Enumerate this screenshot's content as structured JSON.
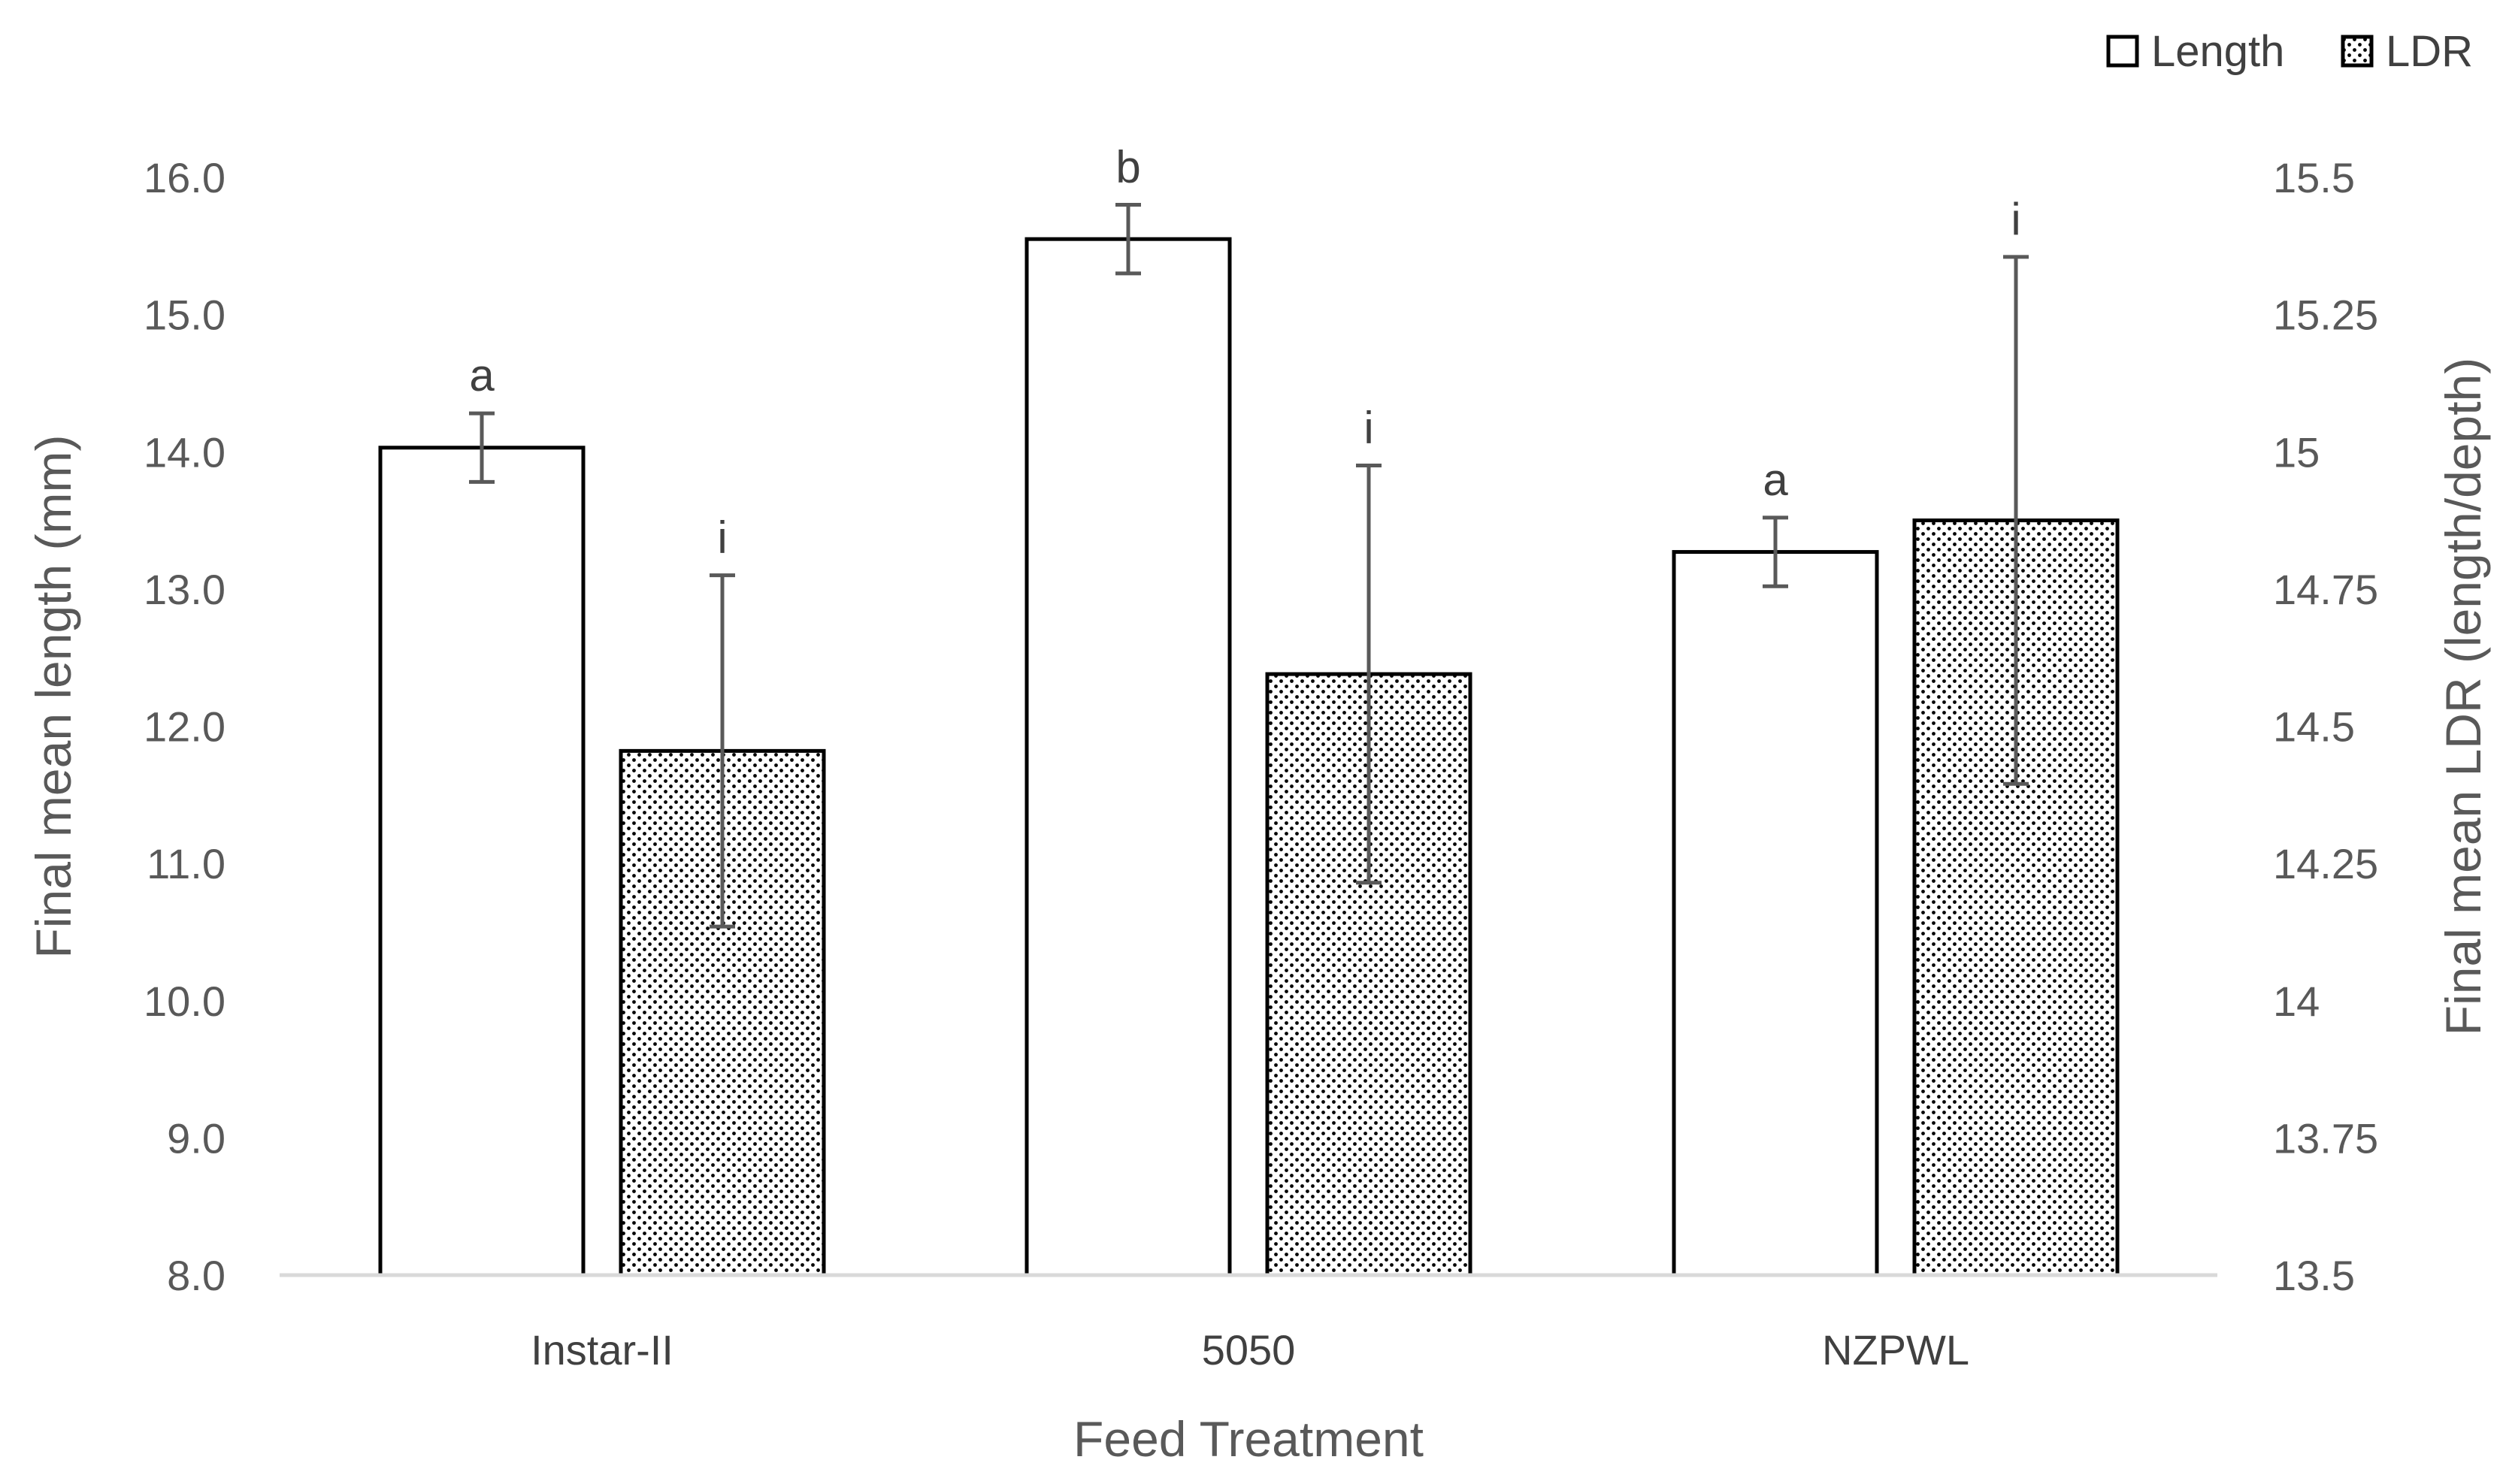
{
  "chart_data": {
    "type": "bar",
    "title": "",
    "xlabel": "Feed Treatment",
    "ylabel": "Final mean length (mm)",
    "y2label": "Final mean  LDR (length/depth)",
    "categories": [
      "Instar-II",
      "5050",
      "NZPWL"
    ],
    "ylim": [
      8.0,
      16.0
    ],
    "y2lim": [
      13.5,
      15.5
    ],
    "yticks": [
      "8.0",
      "9.0",
      "10.0",
      "11.0",
      "12.0",
      "13.0",
      "14.0",
      "15.0",
      "16.0"
    ],
    "y2ticks": [
      "13.5",
      "13.75",
      "14",
      "14.25",
      "14.5",
      "14.75",
      "15",
      "15.25",
      "15.5"
    ],
    "series": [
      {
        "name": "Length",
        "axis": "left",
        "pattern": "white",
        "values": [
          14.03,
          15.55,
          13.27
        ],
        "error": [
          0.25,
          0.25,
          0.25
        ],
        "labels": [
          "a",
          "b",
          "a"
        ]
      },
      {
        "name": "LDR",
        "axis": "right",
        "pattern": "dotted",
        "values": [
          14.455,
          14.595,
          14.875
        ],
        "error": [
          0.32,
          0.38,
          0.48
        ],
        "labels": [
          "i",
          "i",
          "i"
        ]
      }
    ],
    "legend": {
      "position": "top-right",
      "entries": [
        "Length",
        "LDR"
      ]
    }
  }
}
